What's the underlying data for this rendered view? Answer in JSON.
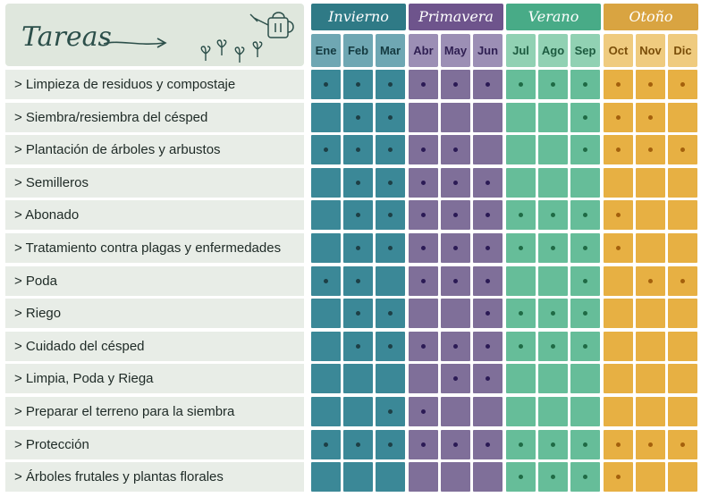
{
  "title": "Tareas",
  "seasons": [
    {
      "name": "Invierno",
      "header_color": "#2f7a86",
      "cell_color": "#3b8897",
      "month_color": "#6fa7b3",
      "month_text": "#143a40",
      "dot_color": "#1d3f46",
      "months": [
        "Ene",
        "Feb",
        "Mar"
      ]
    },
    {
      "name": "Primavera",
      "header_color": "#6e548c",
      "cell_color": "#7f6f99",
      "month_color": "#9c8fb5",
      "month_text": "#2f1f52",
      "dot_color": "#2b1a55",
      "months": [
        "Abr",
        "May",
        "Jun"
      ]
    },
    {
      "name": "Verano",
      "header_color": "#48ab87",
      "cell_color": "#66bd99",
      "month_color": "#91d1b3",
      "month_text": "#1d5b40",
      "dot_color": "#1f6a45",
      "months": [
        "Jul",
        "Ago",
        "Sep"
      ]
    },
    {
      "name": "Otoño",
      "header_color": "#d9a441",
      "cell_color": "#e7b043",
      "month_color": "#efcb7f",
      "month_text": "#7a4e09",
      "dot_color": "#a4600c",
      "months": [
        "Oct",
        "Nov",
        "Dic"
      ]
    }
  ],
  "tasks": [
    {
      "label": "> Limpieza de residuos y compostaje",
      "months": [
        1,
        1,
        1,
        1,
        1,
        1,
        1,
        1,
        1,
        1,
        1,
        1
      ]
    },
    {
      "label": "> Siembra/resiembra del césped",
      "months": [
        0,
        1,
        1,
        0,
        0,
        0,
        0,
        0,
        1,
        1,
        1,
        0
      ]
    },
    {
      "label": "> Plantación de árboles y arbustos",
      "months": [
        1,
        1,
        1,
        1,
        1,
        0,
        0,
        0,
        1,
        1,
        1,
        1
      ]
    },
    {
      "label": "> Semilleros",
      "months": [
        0,
        1,
        1,
        1,
        1,
        1,
        0,
        0,
        0,
        0,
        0,
        0
      ]
    },
    {
      "label": "> Abonado",
      "months": [
        0,
        1,
        1,
        1,
        1,
        1,
        1,
        1,
        1,
        1,
        0,
        0
      ]
    },
    {
      "label": "> Tratamiento contra plagas y enfermedades",
      "months": [
        0,
        1,
        1,
        1,
        1,
        1,
        1,
        1,
        1,
        1,
        0,
        0
      ]
    },
    {
      "label": "> Poda",
      "months": [
        1,
        1,
        0,
        1,
        1,
        1,
        0,
        0,
        1,
        0,
        1,
        1
      ]
    },
    {
      "label": "> Riego",
      "months": [
        0,
        1,
        1,
        0,
        0,
        1,
        1,
        1,
        1,
        0,
        0,
        0
      ]
    },
    {
      "label": "> Cuidado del césped",
      "months": [
        0,
        1,
        1,
        1,
        1,
        1,
        1,
        1,
        1,
        0,
        0,
        0
      ]
    },
    {
      "label": "> Limpia, Poda y Riega",
      "months": [
        0,
        0,
        0,
        0,
        1,
        1,
        0,
        0,
        0,
        0,
        0,
        0
      ]
    },
    {
      "label": "> Preparar el terreno para la siembra",
      "months": [
        0,
        0,
        1,
        1,
        0,
        0,
        0,
        0,
        0,
        0,
        0,
        0
      ]
    },
    {
      "label": "> Protección",
      "months": [
        1,
        1,
        1,
        1,
        1,
        1,
        1,
        1,
        1,
        1,
        1,
        1
      ]
    },
    {
      "label": "> Árboles frutales y plantas florales",
      "months": [
        0,
        0,
        0,
        0,
        0,
        0,
        1,
        1,
        1,
        1,
        0,
        0
      ]
    }
  ]
}
